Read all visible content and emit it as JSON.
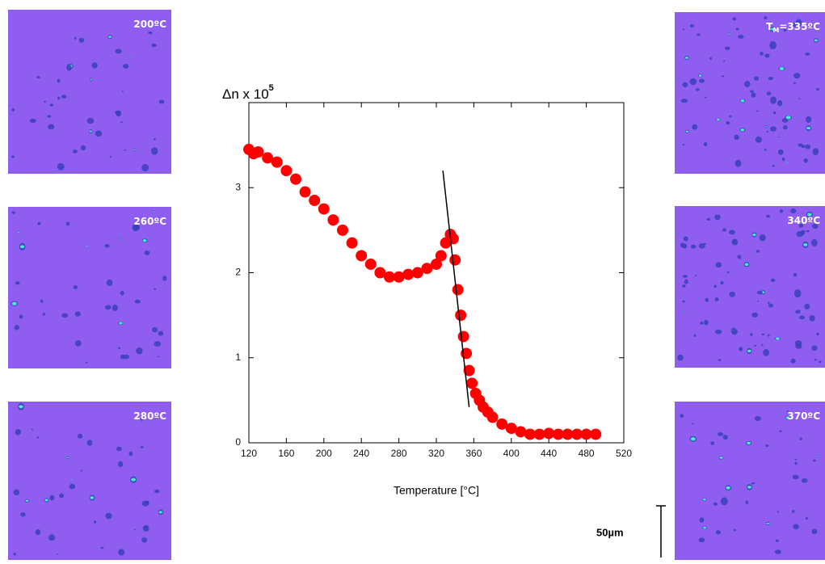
{
  "chart_data": {
    "type": "scatter",
    "ylabel": "Δn x 10",
    "ylabel_exponent": "5",
    "xlabel": "Temperature [°C]",
    "x": [
      120,
      125,
      130,
      140,
      150,
      160,
      170,
      180,
      190,
      200,
      210,
      220,
      230,
      240,
      250,
      260,
      270,
      280,
      290,
      300,
      310,
      320,
      325,
      330,
      335,
      338,
      340,
      343,
      346,
      349,
      352,
      355,
      358,
      362,
      366,
      370,
      375,
      380,
      390,
      400,
      410,
      420,
      430,
      440,
      450,
      460,
      470,
      480,
      490
    ],
    "values": [
      3.45,
      3.4,
      3.42,
      3.35,
      3.3,
      3.2,
      3.1,
      2.95,
      2.85,
      2.75,
      2.62,
      2.5,
      2.35,
      2.2,
      2.1,
      2.0,
      1.95,
      1.95,
      1.98,
      2.0,
      2.05,
      2.1,
      2.2,
      2.35,
      2.45,
      2.4,
      2.15,
      1.8,
      1.5,
      1.25,
      1.05,
      0.85,
      0.7,
      0.58,
      0.5,
      0.42,
      0.36,
      0.3,
      0.22,
      0.17,
      0.13,
      0.1,
      0.1,
      0.11,
      0.1,
      0.1,
      0.1,
      0.1,
      0.1
    ],
    "color": "#ff0000",
    "fit_line": {
      "x": [
        327,
        355
      ],
      "y": [
        3.2,
        0.42
      ],
      "color": "#000000"
    },
    "xlim": [
      120,
      520
    ],
    "xticks": [
      120,
      160,
      200,
      240,
      280,
      320,
      360,
      400,
      440,
      480,
      520
    ],
    "ylim": [
      0,
      4
    ],
    "yticks": [
      0,
      1,
      2,
      3
    ]
  },
  "micrographs": [
    {
      "label": "200ºC"
    },
    {
      "label": "260ºC"
    },
    {
      "label": "280ºC"
    },
    {
      "prefix": "T",
      "subscript": "M",
      "label": "=335ºC"
    },
    {
      "label": "340ºC"
    },
    {
      "label": "370ºC"
    }
  ],
  "scale_bar": {
    "label": "50µm"
  }
}
